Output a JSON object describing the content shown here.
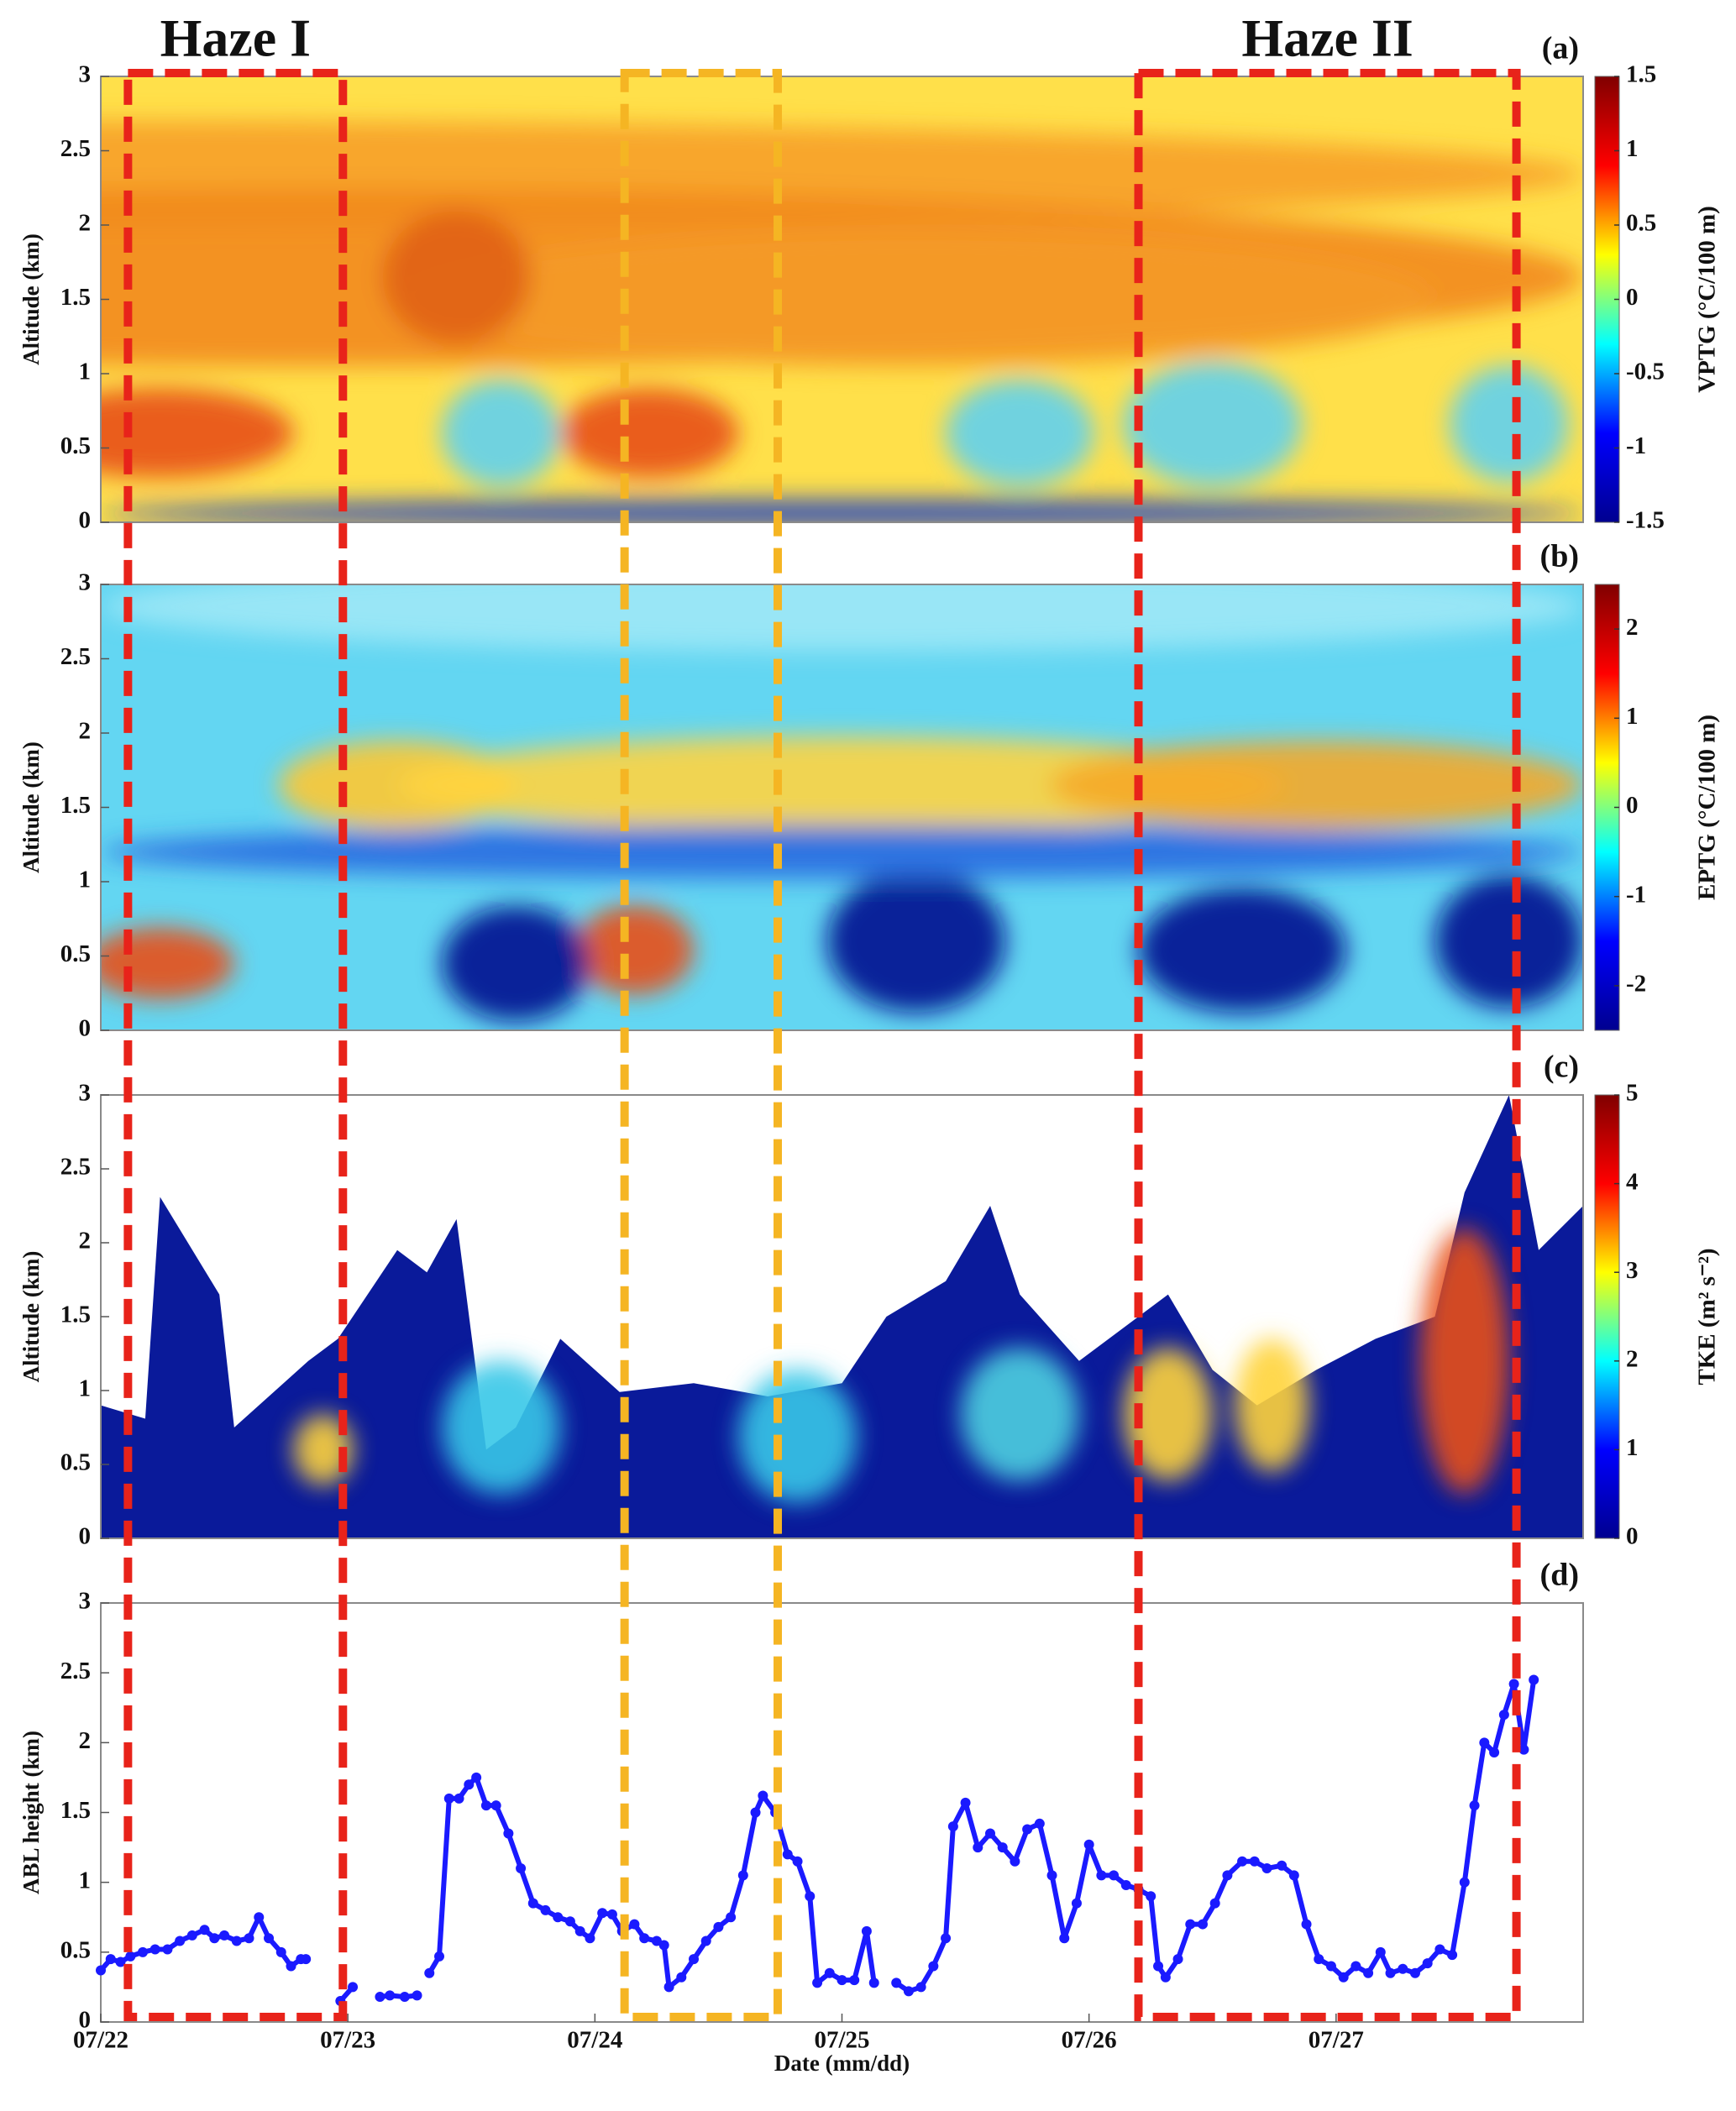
{
  "chart_data": [
    {
      "type": "heatmap",
      "panel_label": "(a)",
      "ylabel": "Altitude (km)",
      "ylim": [
        0,
        3
      ],
      "yticks": [
        0,
        0.5,
        1,
        1.5,
        2,
        2.5,
        3
      ],
      "colorbar": {
        "label": "VPTG (°C/100 m)",
        "lim": [
          -1.5,
          1.5
        ],
        "ticks": [
          -1.5,
          -1,
          -0.5,
          0,
          0.5,
          1,
          1.5
        ],
        "colors": [
          "#00008f",
          "#0000ff",
          "#00ffff",
          "#ffff00",
          "#ff0000",
          "#800000"
        ]
      }
    },
    {
      "type": "heatmap",
      "panel_label": "(b)",
      "ylabel": "Altitude (km)",
      "ylim": [
        0,
        3
      ],
      "yticks": [
        0,
        0.5,
        1,
        1.5,
        2,
        2.5,
        3
      ],
      "colorbar": {
        "label": "EPTG (°C/100 m)",
        "lim": [
          -2.5,
          2.5
        ],
        "ticks": [
          -2,
          -1,
          0,
          1,
          2
        ],
        "colors": [
          "#00008f",
          "#0000ff",
          "#00ffff",
          "#ffff00",
          "#ff0000",
          "#800000"
        ]
      }
    },
    {
      "type": "heatmap",
      "panel_label": "(c)",
      "ylabel": "Altitude (km)",
      "ylim": [
        0,
        3
      ],
      "yticks": [
        0,
        0.5,
        1,
        1.5,
        2,
        2.5,
        3
      ],
      "colorbar": {
        "label": "TKE (m² s⁻²)",
        "lim": [
          0,
          5
        ],
        "ticks": [
          0,
          1,
          2,
          3,
          4,
          5
        ],
        "colors": [
          "#00008f",
          "#0000ff",
          "#00ffff",
          "#ffff00",
          "#ff0000",
          "#800000"
        ]
      }
    },
    {
      "type": "line",
      "panel_label": "(d)",
      "ylabel": "ABL height (km)",
      "xlabel": "Date (mm/dd)",
      "color": "#1a1aff",
      "ylim": [
        0,
        3
      ],
      "yticks": [
        0,
        0.5,
        1,
        1.5,
        2,
        2.5,
        3
      ],
      "xlim": [
        0,
        6
      ],
      "xticks": [
        {
          "value": 0,
          "label": "07/22"
        },
        {
          "value": 1,
          "label": "07/23"
        },
        {
          "value": 2,
          "label": "07/24"
        },
        {
          "value": 3,
          "label": "07/25"
        },
        {
          "value": 4,
          "label": "07/26"
        },
        {
          "value": 5,
          "label": "07/27"
        }
      ],
      "x": [
        0,
        0.04,
        0.08,
        0.12,
        0.17,
        0.22,
        0.27,
        0.32,
        0.37,
        0.42,
        0.46,
        0.5,
        0.55,
        0.6,
        0.64,
        0.68,
        0.73,
        0.77,
        0.81,
        0.83,
        0.9,
        0.97,
        1.02,
        1.08,
        1.13,
        1.17,
        1.23,
        1.28,
        1.3,
        1.33,
        1.37,
        1.41,
        1.45,
        1.49,
        1.52,
        1.56,
        1.6,
        1.65,
        1.7,
        1.75,
        1.8,
        1.85,
        1.9,
        1.94,
        1.98,
        2.03,
        2.07,
        2.11,
        2.16,
        2.2,
        2.25,
        2.28,
        2.3,
        2.35,
        2.4,
        2.45,
        2.5,
        2.55,
        2.6,
        2.65,
        2.68,
        2.73,
        2.78,
        2.82,
        2.87,
        2.9,
        2.95,
        3.0,
        3.05,
        3.1,
        3.13,
        3.18,
        3.22,
        3.27,
        3.32,
        3.37,
        3.42,
        3.45,
        3.5,
        3.55,
        3.6,
        3.65,
        3.7,
        3.75,
        3.8,
        3.85,
        3.9,
        3.95,
        4.0,
        4.05,
        4.1,
        4.15,
        4.2,
        4.25,
        4.28,
        4.31,
        4.36,
        4.41,
        4.46,
        4.51,
        4.56,
        4.62,
        4.67,
        4.72,
        4.78,
        4.83,
        4.88,
        4.93,
        4.98,
        5.03,
        5.08,
        5.13,
        5.18,
        5.22,
        5.27,
        5.32,
        5.37,
        5.42,
        5.47,
        5.52,
        5.56,
        5.6,
        5.64,
        5.68,
        5.72,
        5.76,
        5.8
      ],
      "values": [
        0.37,
        0.45,
        0.43,
        0.47,
        0.5,
        0.52,
        0.52,
        0.58,
        0.62,
        0.66,
        0.6,
        0.62,
        0.58,
        0.6,
        0.75,
        0.6,
        0.5,
        0.4,
        0.45,
        0.45,
        null,
        0.15,
        0.25,
        null,
        0.18,
        0.19,
        0.18,
        0.19,
        null,
        0.35,
        0.47,
        1.6,
        1.6,
        1.7,
        1.75,
        1.55,
        1.55,
        1.35,
        1.1,
        0.85,
        0.8,
        0.75,
        0.72,
        0.65,
        0.6,
        0.78,
        0.77,
        0.65,
        0.7,
        0.6,
        0.58,
        0.55,
        0.25,
        0.32,
        0.45,
        0.58,
        0.68,
        0.75,
        1.05,
        1.5,
        1.62,
        1.5,
        1.2,
        1.15,
        0.9,
        0.28,
        0.35,
        0.3,
        0.3,
        0.65,
        0.28,
        null,
        0.28,
        0.22,
        0.25,
        0.4,
        0.6,
        1.4,
        1.57,
        1.25,
        1.35,
        1.25,
        1.15,
        1.38,
        1.42,
        1.05,
        0.6,
        0.85,
        1.27,
        1.05,
        1.05,
        0.98,
        0.95,
        0.9,
        0.4,
        0.32,
        0.45,
        0.7,
        0.7,
        0.85,
        1.05,
        1.15,
        1.15,
        1.1,
        1.12,
        1.05,
        0.7,
        0.45,
        0.4,
        0.32,
        0.4,
        0.35,
        0.5,
        0.35,
        0.38,
        0.35,
        0.42,
        0.52,
        0.48,
        1.0,
        1.55,
        2.0,
        1.93,
        2.2,
        2.42,
        1.95,
        2.45
      ]
    }
  ],
  "periods": [
    {
      "label": "Haze I",
      "start": 0.11,
      "end": 0.98,
      "color": "#e8231a"
    },
    {
      "start": 2.12,
      "end": 2.74,
      "color": "#f5b523"
    },
    {
      "label": "Haze II",
      "start": 4.2,
      "end": 5.73,
      "color": "#e8231a"
    }
  ]
}
